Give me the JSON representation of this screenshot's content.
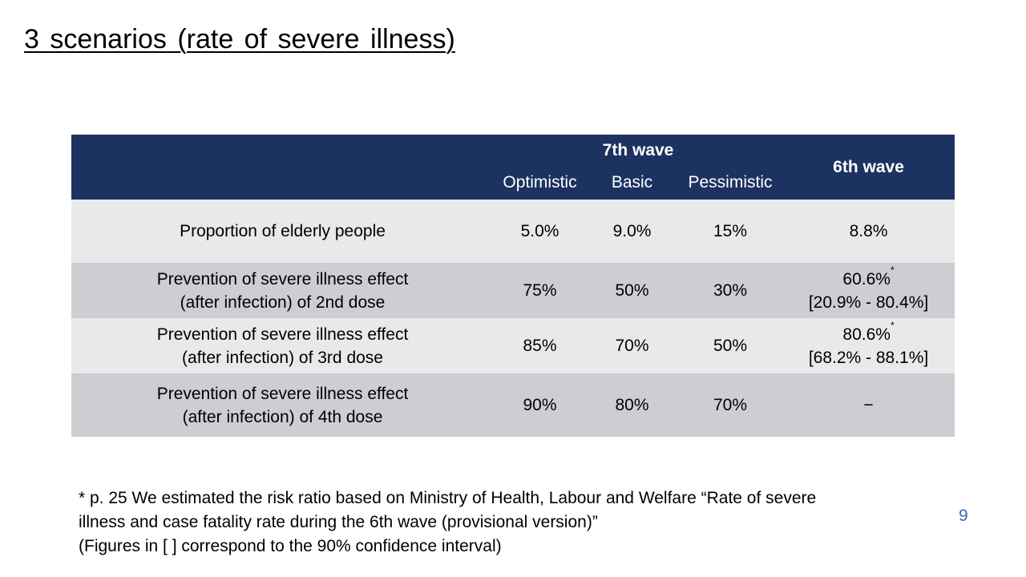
{
  "slide": {
    "title": "3 scenarios (rate of severe illness)",
    "page_number": "9"
  },
  "table": {
    "header": {
      "seventh_wave": "7th wave",
      "sixth_wave": "6th wave",
      "scenarios": [
        "Optimistic",
        "Basic",
        "Pessimistic"
      ]
    },
    "rows": [
      {
        "label_line1": "Proportion of elderly people",
        "label_line2": "",
        "optimistic": "5.0%",
        "basic": "9.0%",
        "pessimistic": "15%",
        "sixth_main": "8.8%",
        "sixth_mark": "",
        "sixth_ci": ""
      },
      {
        "label_line1": "Prevention of severe illness effect",
        "label_line2": "(after infection) of 2nd dose",
        "optimistic": "75%",
        "basic": "50%",
        "pessimistic": "30%",
        "sixth_main": "60.6%",
        "sixth_mark": "*",
        "sixth_ci": "[20.9% - 80.4%]"
      },
      {
        "label_line1": "Prevention of severe illness effect",
        "label_line2": "(after infection) of 3rd dose",
        "optimistic": "85%",
        "basic": "70%",
        "pessimistic": "50%",
        "sixth_main": "80.6%",
        "sixth_mark": "*",
        "sixth_ci": "[68.2% - 88.1%]"
      },
      {
        "label_line1": "Prevention of severe illness effect",
        "label_line2": "(after infection) of 4th dose",
        "optimistic": "90%",
        "basic": "80%",
        "pessimistic": "70%",
        "sixth_main": "−",
        "sixth_mark": "",
        "sixth_ci": ""
      }
    ]
  },
  "footnote": {
    "line1": "* p. 25 We estimated the risk ratio based on Ministry of Health, Labour and Welfare “Rate of severe",
    "line2": "illness and case fatality rate during the 6th wave (provisional version)”",
    "line3": "(Figures in [ ] correspond to the 90% confidence interval)"
  },
  "colors": {
    "header_bg": "#1c3361",
    "row_light": "#e8e9eb",
    "row_dark": "#cdcdd2",
    "page_number": "#3a6fb0"
  }
}
